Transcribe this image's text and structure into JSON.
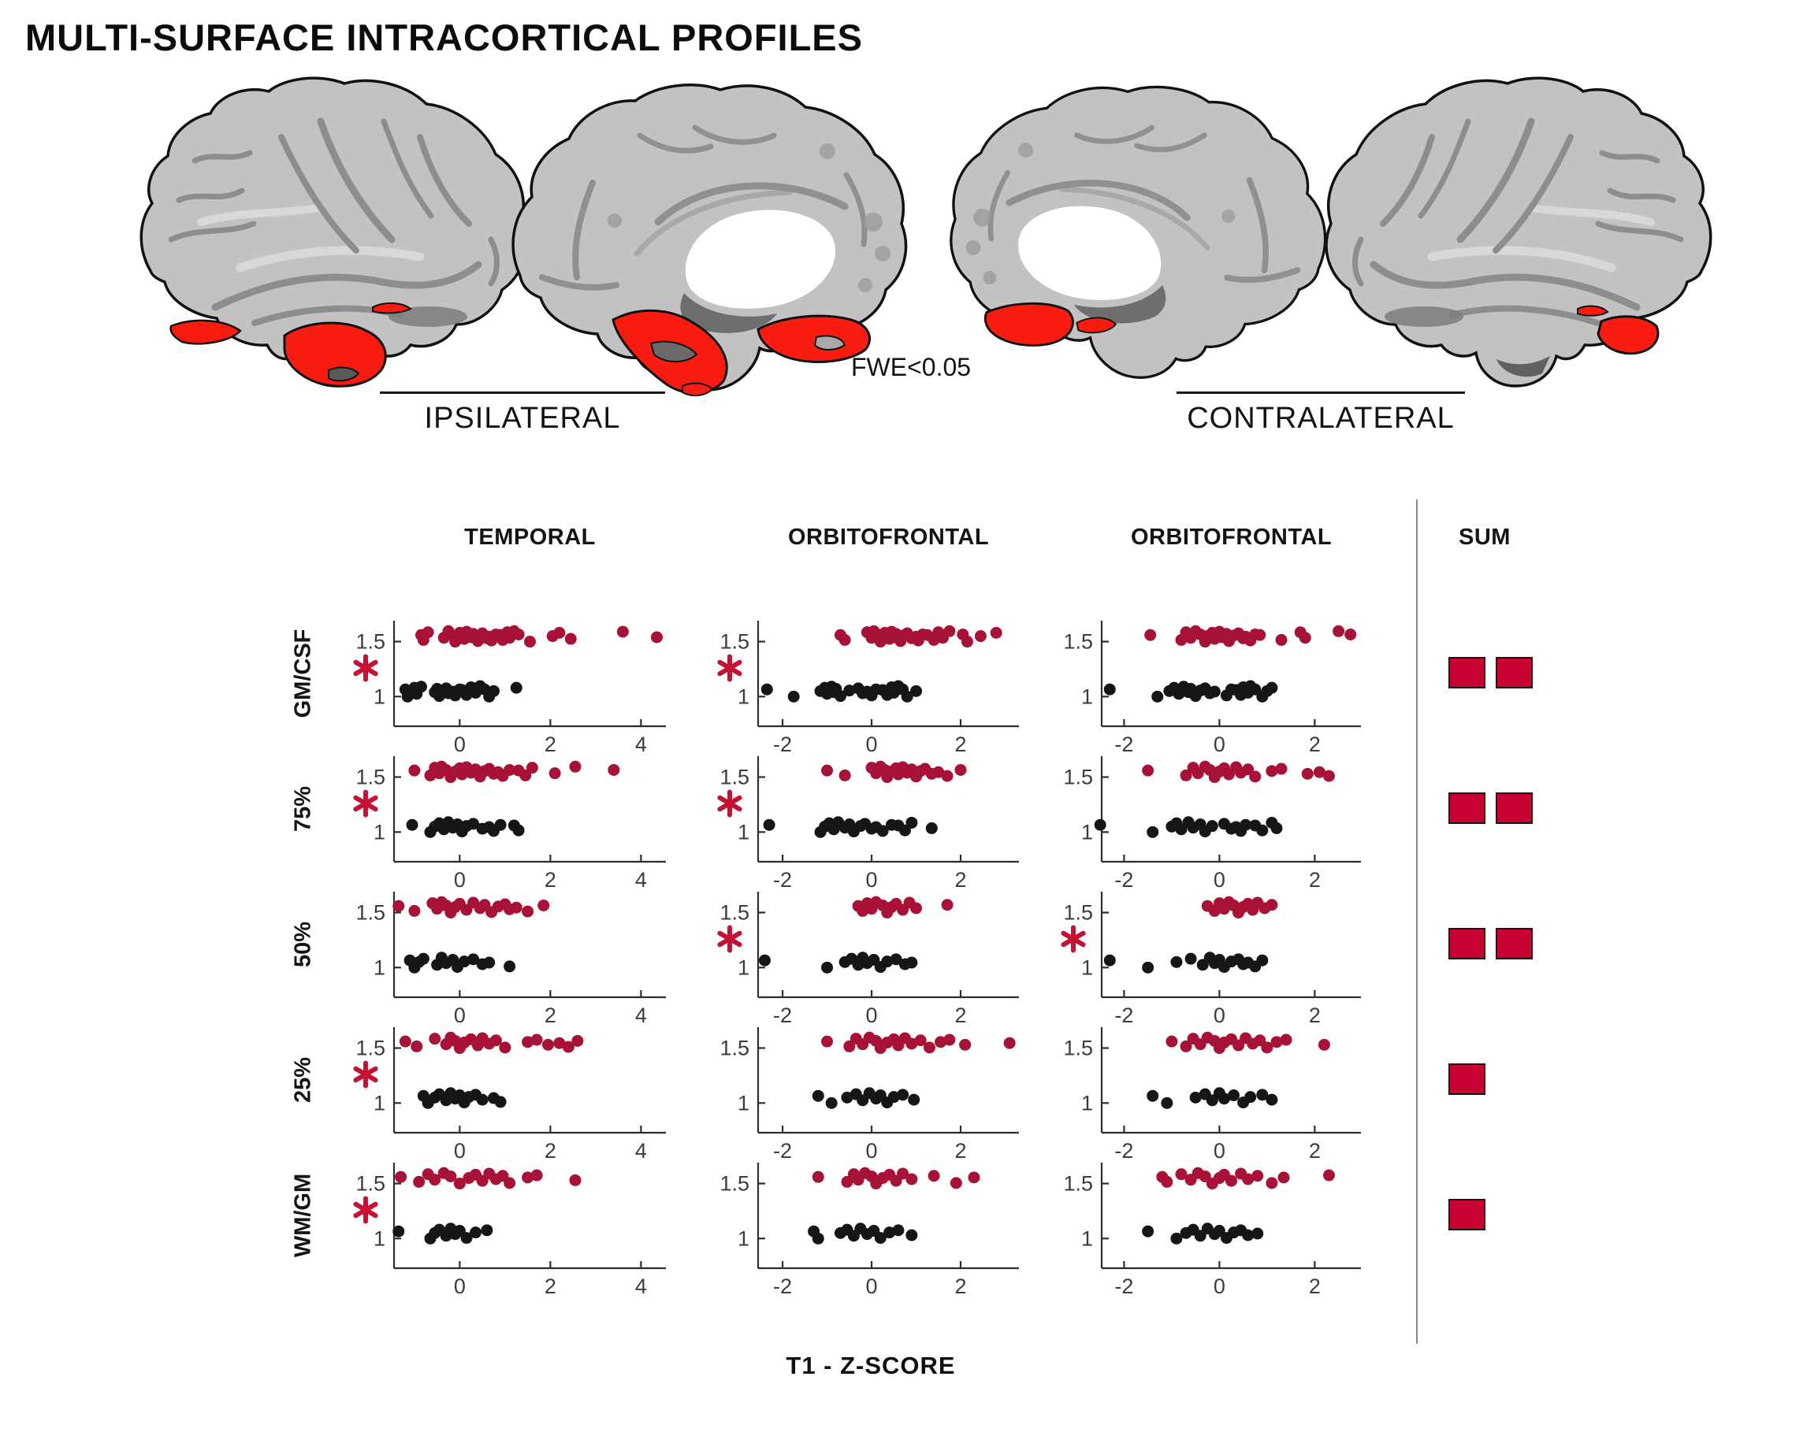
{
  "title": "MULTI-SURFACE INTRACORTICAL PROFILES",
  "header": {
    "ipsilateral_label": "IPSILATERAL",
    "contralateral_label": "CONTRALATERAL",
    "threshold_label": "FWE<0.05"
  },
  "colors": {
    "brain_highlight_red": "#f81d10",
    "dot_red": "#a81237",
    "dot_black": "#161616",
    "asterisk_red": "#c31233",
    "sum_square_red": "#c70331",
    "axis": "#2e2e2e",
    "tick_text": "#3c3c3c"
  },
  "grid": {
    "col_headers": [
      "TEMPORAL",
      "ORBITOFRONTAL",
      "ORBITOFRONTAL"
    ],
    "sum_header": "SUM",
    "row_labels": [
      "GM/CSF",
      "75%",
      "50%",
      "25%",
      "WM/GM"
    ],
    "xlabel": "T1 - Z-SCORE",
    "ytick_labels": [
      "1.5",
      "1"
    ],
    "ytick_values": [
      1.5,
      1
    ],
    "sum_counts": [
      2,
      2,
      2,
      1,
      1
    ],
    "significance": [
      [
        true,
        true,
        false
      ],
      [
        true,
        true,
        false
      ],
      [
        false,
        true,
        true
      ],
      [
        true,
        false,
        false
      ],
      [
        true,
        false,
        false
      ]
    ]
  },
  "chart_data": {
    "type": "scatter",
    "ylim": [
      0.73,
      1.69
    ],
    "red_y_base": 1.545,
    "black_y_base": 1.045,
    "jitter_pattern": [
      0.015,
      -0.03,
      0.04,
      -0.01,
      0.05,
      0.02,
      -0.045,
      0.005,
      0.035,
      -0.02,
      0.045,
      -0.005,
      0.025,
      -0.04,
      0.01,
      0.03,
      -0.015,
      0.0,
      -0.035,
      0.02
    ],
    "columns": [
      {
        "header": "TEMPORAL",
        "xticks": [
          0,
          2,
          4
        ],
        "xlim": [
          -1.45,
          4.55
        ]
      },
      {
        "header": "ORBITOFRONTAL",
        "xticks": [
          -2,
          0,
          2
        ],
        "xlim": [
          -2.55,
          3.31
        ]
      },
      {
        "header": "ORBITOFRONTAL",
        "xticks": [
          -2,
          0,
          2
        ],
        "xlim": [
          -2.47,
          2.97
        ]
      }
    ],
    "panels": [
      {
        "row": "GM/CSF",
        "column": "TEMPORAL",
        "column_index": 0,
        "red_x": [
          -0.85,
          -0.8,
          -0.7,
          -0.35,
          -0.25,
          -0.2,
          -0.1,
          -0.05,
          0.0,
          0.1,
          0.15,
          0.25,
          0.3,
          0.4,
          0.45,
          0.5,
          0.6,
          0.65,
          0.7,
          0.8,
          0.9,
          0.95,
          1.05,
          1.1,
          1.2,
          1.3,
          1.55,
          2.05,
          2.2,
          2.45,
          3.6,
          4.35
        ],
        "black_x": [
          -1.2,
          -1.15,
          -1.05,
          -1.0,
          -0.95,
          -0.85,
          -0.55,
          -0.5,
          -0.45,
          -0.4,
          -0.3,
          -0.25,
          -0.15,
          -0.1,
          0.0,
          0.05,
          0.15,
          0.25,
          0.35,
          0.45,
          0.55,
          0.65,
          0.75,
          1.25
        ]
      },
      {
        "row": "GM/CSF",
        "column": "ORBITOFRONTAL",
        "column_index": 1,
        "red_x": [
          -0.7,
          -0.6,
          -0.1,
          0.0,
          0.05,
          0.15,
          0.2,
          0.25,
          0.3,
          0.4,
          0.45,
          0.5,
          0.55,
          0.65,
          0.7,
          0.8,
          0.9,
          1.0,
          1.05,
          1.15,
          1.25,
          1.4,
          1.5,
          1.6,
          1.75,
          2.05,
          2.15,
          2.45,
          2.8
        ],
        "black_x": [
          -2.35,
          -1.75,
          -1.15,
          -1.05,
          -1.0,
          -0.9,
          -0.85,
          -0.8,
          -0.7,
          -0.5,
          -0.3,
          -0.2,
          -0.1,
          0.0,
          0.1,
          0.25,
          0.35,
          0.45,
          0.5,
          0.6,
          0.7,
          0.8,
          1.0
        ]
      },
      {
        "row": "GM/CSF",
        "column": "ORBITOFRONTAL",
        "column_index": 2,
        "red_x": [
          -1.45,
          -0.8,
          -0.7,
          -0.6,
          -0.5,
          -0.4,
          -0.3,
          -0.25,
          -0.15,
          -0.1,
          0.0,
          0.05,
          0.15,
          0.2,
          0.3,
          0.4,
          0.5,
          0.55,
          0.65,
          0.75,
          0.85,
          1.3,
          1.7,
          1.8,
          2.5,
          2.75
        ],
        "black_x": [
          -2.3,
          -1.3,
          -1.05,
          -0.95,
          -0.85,
          -0.75,
          -0.65,
          -0.6,
          -0.5,
          -0.4,
          -0.3,
          -0.2,
          -0.1,
          0.15,
          0.25,
          0.35,
          0.45,
          0.5,
          0.6,
          0.65,
          0.75,
          0.9,
          1.0,
          1.1
        ]
      },
      {
        "row": "75%",
        "column": "TEMPORAL",
        "column_index": 0,
        "red_x": [
          -1.0,
          -0.65,
          -0.55,
          -0.45,
          -0.4,
          -0.3,
          -0.2,
          -0.1,
          0.0,
          0.05,
          0.15,
          0.25,
          0.35,
          0.45,
          0.55,
          0.65,
          0.75,
          0.85,
          0.95,
          1.1,
          1.3,
          1.45,
          1.6,
          2.1,
          2.55,
          3.4
        ],
        "black_x": [
          -1.05,
          -0.65,
          -0.55,
          -0.45,
          -0.35,
          -0.25,
          -0.15,
          -0.05,
          0.05,
          0.15,
          0.3,
          0.5,
          0.65,
          0.75,
          0.9,
          1.2,
          1.3
        ]
      },
      {
        "row": "75%",
        "column": "ORBITOFRONTAL",
        "column_index": 1,
        "red_x": [
          -1.0,
          -0.6,
          0.0,
          0.1,
          0.2,
          0.3,
          0.35,
          0.45,
          0.55,
          0.6,
          0.7,
          0.8,
          0.9,
          1.0,
          1.1,
          1.2,
          1.35,
          1.5,
          1.7,
          2.0
        ],
        "black_x": [
          -2.3,
          -1.15,
          -1.05,
          -0.95,
          -0.85,
          -0.75,
          -0.6,
          -0.5,
          -0.4,
          -0.25,
          -0.15,
          0.0,
          0.1,
          0.25,
          0.45,
          0.6,
          0.75,
          0.9,
          1.35
        ]
      },
      {
        "row": "75%",
        "column": "ORBITOFRONTAL",
        "column_index": 2,
        "red_x": [
          -1.5,
          -0.7,
          -0.55,
          -0.45,
          -0.3,
          -0.2,
          -0.1,
          0.0,
          0.1,
          0.2,
          0.35,
          0.45,
          0.6,
          0.75,
          1.1,
          1.3,
          1.85,
          2.1,
          2.3
        ],
        "black_x": [
          -2.5,
          -1.4,
          -1.0,
          -0.9,
          -0.8,
          -0.65,
          -0.55,
          -0.4,
          -0.3,
          -0.15,
          0.1,
          0.25,
          0.35,
          0.45,
          0.55,
          0.75,
          0.9,
          1.1,
          1.2
        ]
      },
      {
        "row": "50%",
        "column": "TEMPORAL",
        "column_index": 0,
        "red_x": [
          -1.35,
          -1.0,
          -0.6,
          -0.5,
          -0.4,
          -0.3,
          -0.2,
          -0.1,
          0.0,
          0.15,
          0.3,
          0.45,
          0.55,
          0.7,
          0.85,
          1.0,
          1.1,
          1.25,
          1.5,
          1.85
        ],
        "black_x": [
          -1.1,
          -1.0,
          -0.9,
          -0.8,
          -0.5,
          -0.4,
          -0.3,
          -0.15,
          -0.05,
          0.1,
          0.3,
          0.5,
          0.65,
          1.1
        ]
      },
      {
        "row": "50%",
        "column": "ORBITOFRONTAL",
        "column_index": 1,
        "red_x": [
          -0.3,
          -0.2,
          -0.1,
          0.0,
          0.1,
          0.25,
          0.35,
          0.45,
          0.55,
          0.7,
          0.85,
          1.0,
          1.7
        ],
        "black_x": [
          -2.4,
          -1.0,
          -0.6,
          -0.45,
          -0.3,
          -0.2,
          -0.1,
          0.05,
          0.2,
          0.35,
          0.55,
          0.75,
          0.9
        ]
      },
      {
        "row": "50%",
        "column": "ORBITOFRONTAL",
        "column_index": 2,
        "red_x": [
          -0.25,
          -0.1,
          0.0,
          0.1,
          0.2,
          0.3,
          0.4,
          0.5,
          0.6,
          0.7,
          0.8,
          0.95,
          1.1
        ],
        "black_x": [
          -2.3,
          -1.5,
          -0.9,
          -0.6,
          -0.35,
          -0.2,
          -0.1,
          0.0,
          0.1,
          0.25,
          0.4,
          0.5,
          0.6,
          0.75,
          0.9
        ]
      },
      {
        "row": "25%",
        "column": "TEMPORAL",
        "column_index": 0,
        "red_x": [
          -1.2,
          -0.95,
          -0.55,
          -0.3,
          -0.2,
          -0.1,
          0.0,
          0.1,
          0.25,
          0.4,
          0.5,
          0.65,
          0.8,
          1.0,
          1.5,
          1.7,
          1.95,
          2.2,
          2.4,
          2.6
        ],
        "black_x": [
          -0.8,
          -0.7,
          -0.55,
          -0.45,
          -0.3,
          -0.2,
          -0.1,
          0.0,
          0.1,
          0.2,
          0.35,
          0.5,
          0.75,
          0.9
        ]
      },
      {
        "row": "25%",
        "column": "ORBITOFRONTAL",
        "column_index": 1,
        "red_x": [
          -1.0,
          -0.5,
          -0.35,
          -0.2,
          -0.05,
          0.1,
          0.2,
          0.35,
          0.5,
          0.6,
          0.75,
          0.9,
          1.1,
          1.3,
          1.55,
          1.75,
          2.1,
          3.1
        ],
        "black_x": [
          -1.2,
          -0.9,
          -0.55,
          -0.35,
          -0.2,
          -0.05,
          0.1,
          0.2,
          0.35,
          0.5,
          0.7,
          0.95
        ]
      },
      {
        "row": "25%",
        "column": "ORBITOFRONTAL",
        "column_index": 2,
        "red_x": [
          -1.0,
          -0.7,
          -0.55,
          -0.4,
          -0.25,
          -0.1,
          0.0,
          0.1,
          0.25,
          0.4,
          0.55,
          0.7,
          0.85,
          1.0,
          1.2,
          1.4,
          2.2
        ],
        "black_x": [
          -1.4,
          -1.1,
          -0.5,
          -0.3,
          -0.15,
          0.0,
          0.1,
          0.3,
          0.5,
          0.65,
          0.9,
          1.1
        ]
      },
      {
        "row": "WM/GM",
        "column": "TEMPORAL",
        "column_index": 0,
        "red_x": [
          -1.3,
          -0.9,
          -0.7,
          -0.55,
          -0.35,
          -0.2,
          0.0,
          0.2,
          0.35,
          0.5,
          0.65,
          0.8,
          0.95,
          1.1,
          1.5,
          1.7,
          2.55
        ],
        "black_x": [
          -1.35,
          -0.65,
          -0.55,
          -0.45,
          -0.3,
          -0.2,
          -0.1,
          0.0,
          0.15,
          0.35,
          0.6
        ]
      },
      {
        "row": "WM/GM",
        "column": "ORBITOFRONTAL",
        "column_index": 1,
        "red_x": [
          -1.2,
          -0.55,
          -0.4,
          -0.3,
          -0.15,
          0.0,
          0.1,
          0.25,
          0.4,
          0.55,
          0.7,
          0.9,
          1.4,
          1.9,
          2.3
        ],
        "black_x": [
          -1.3,
          -1.2,
          -0.7,
          -0.55,
          -0.4,
          -0.25,
          -0.1,
          0.05,
          0.2,
          0.4,
          0.6,
          0.9
        ]
      },
      {
        "row": "WM/GM",
        "column": "ORBITOFRONTAL",
        "column_index": 2,
        "red_x": [
          -1.2,
          -1.1,
          -0.8,
          -0.6,
          -0.45,
          -0.3,
          -0.15,
          0.0,
          0.1,
          0.25,
          0.45,
          0.6,
          0.8,
          1.1,
          1.35,
          2.3
        ],
        "black_x": [
          -1.5,
          -0.9,
          -0.7,
          -0.55,
          -0.4,
          -0.25,
          -0.1,
          0.0,
          0.15,
          0.3,
          0.45,
          0.6,
          0.8
        ]
      }
    ]
  }
}
